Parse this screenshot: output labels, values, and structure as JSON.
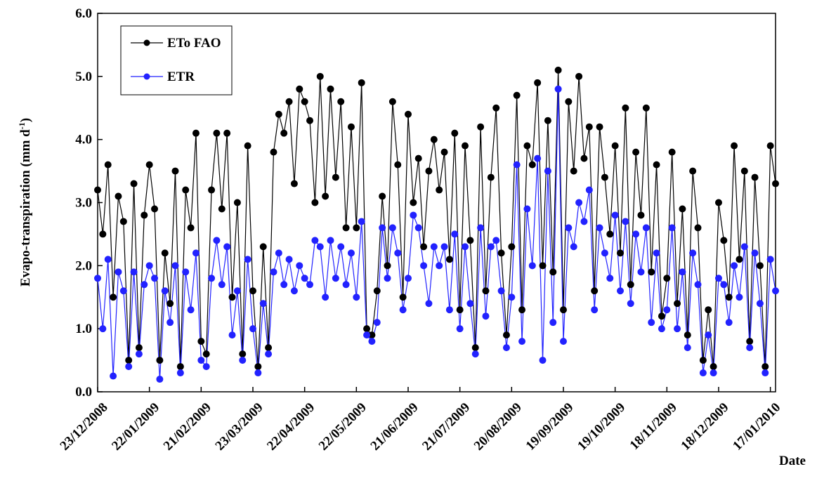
{
  "chart_data": {
    "type": "line",
    "y_label": "Evapo-transpiration (mm d",
    "y_label_sup": "-1",
    "y_label_close": ")",
    "x_label": "Date",
    "legend": "top-left",
    "x": [
      "23/12/2008",
      "26/12/2008",
      "29/12/2008",
      "01/01/2009",
      "04/01/2009",
      "07/01/2009",
      "10/01/2009",
      "13/01/2009",
      "16/01/2009",
      "19/01/2009",
      "22/01/2009",
      "25/01/2009",
      "28/01/2009",
      "31/01/2009",
      "03/02/2009",
      "06/02/2009",
      "09/02/2009",
      "12/02/2009",
      "15/02/2009",
      "18/02/2009",
      "21/02/2009",
      "24/02/2009",
      "27/02/2009",
      "02/03/2009",
      "05/03/2009",
      "08/03/2009",
      "11/03/2009",
      "14/03/2009",
      "17/03/2009",
      "20/03/2009",
      "23/03/2009",
      "26/03/2009",
      "29/03/2009",
      "01/04/2009",
      "04/04/2009",
      "07/04/2009",
      "10/04/2009",
      "13/04/2009",
      "16/04/2009",
      "19/04/2009",
      "22/04/2009",
      "25/04/2009",
      "28/04/2009",
      "01/05/2009",
      "04/05/2009",
      "07/05/2009",
      "10/05/2009",
      "13/05/2009",
      "16/05/2009",
      "19/05/2009",
      "22/05/2009",
      "25/05/2009",
      "28/05/2009",
      "31/05/2009",
      "03/06/2009",
      "06/06/2009",
      "09/06/2009",
      "12/06/2009",
      "15/06/2009",
      "18/06/2009",
      "21/06/2009",
      "24/06/2009",
      "27/06/2009",
      "30/06/2009",
      "03/07/2009",
      "06/07/2009",
      "09/07/2009",
      "12/07/2009",
      "15/07/2009",
      "18/07/2009",
      "21/07/2009",
      "24/07/2009",
      "27/07/2009",
      "30/07/2009",
      "02/08/2009",
      "05/08/2009",
      "08/08/2009",
      "11/08/2009",
      "14/08/2009",
      "17/08/2009",
      "20/08/2009",
      "23/08/2009",
      "26/08/2009",
      "29/08/2009",
      "01/09/2009",
      "04/09/2009",
      "07/09/2009",
      "10/09/2009",
      "13/09/2009",
      "16/09/2009",
      "19/09/2009",
      "22/09/2009",
      "25/09/2009",
      "28/09/2009",
      "01/10/2009",
      "04/10/2009",
      "07/10/2009",
      "10/10/2009",
      "13/10/2009",
      "16/10/2009",
      "19/10/2009",
      "22/10/2009",
      "25/10/2009",
      "28/10/2009",
      "31/10/2009",
      "03/11/2009",
      "06/11/2009",
      "09/11/2009",
      "12/11/2009",
      "15/11/2009",
      "18/11/2009",
      "21/11/2009",
      "24/11/2009",
      "27/11/2009",
      "30/11/2009",
      "03/12/2009",
      "06/12/2009",
      "09/12/2009",
      "12/12/2009",
      "15/12/2009",
      "18/12/2009",
      "21/12/2009",
      "24/12/2009",
      "27/12/2009",
      "30/12/2009",
      "02/01/2010",
      "05/01/2010",
      "08/01/2010",
      "11/01/2010",
      "14/01/2010",
      "17/01/2010",
      "20/01/2010"
    ],
    "series": [
      {
        "name": "ETo FAO",
        "color": "#000000",
        "values": [
          3.2,
          2.5,
          3.6,
          1.5,
          3.1,
          2.7,
          0.5,
          3.3,
          0.7,
          2.8,
          3.6,
          2.9,
          0.5,
          2.2,
          1.4,
          3.5,
          0.4,
          3.2,
          2.6,
          4.1,
          0.8,
          0.6,
          3.2,
          4.1,
          2.9,
          4.1,
          1.5,
          3.0,
          0.6,
          3.9,
          1.6,
          0.4,
          2.3,
          0.7,
          3.8,
          4.4,
          4.1,
          4.6,
          3.3,
          4.8,
          4.6,
          4.3,
          3.0,
          5.0,
          3.1,
          4.8,
          3.4,
          4.6,
          2.6,
          4.2,
          2.6,
          4.9,
          1.0,
          0.9,
          1.6,
          3.1,
          2.0,
          4.6,
          3.6,
          1.5,
          4.4,
          3.0,
          3.7,
          2.3,
          3.5,
          4.0,
          3.2,
          3.8,
          2.1,
          4.1,
          1.3,
          3.9,
          2.4,
          0.7,
          4.2,
          1.6,
          3.4,
          4.5,
          2.2,
          0.9,
          2.3,
          4.7,
          1.3,
          3.9,
          3.6,
          4.9,
          2.0,
          4.3,
          1.9,
          5.1,
          1.3,
          4.6,
          3.5,
          5.0,
          3.7,
          4.2,
          1.6,
          4.2,
          3.4,
          2.5,
          3.9,
          2.2,
          4.5,
          1.7,
          3.8,
          2.8,
          4.5,
          1.9,
          3.6,
          1.2,
          1.8,
          3.8,
          1.4,
          2.9,
          0.9,
          3.5,
          2.6,
          0.5,
          1.3,
          0.4,
          3.0,
          2.4,
          1.5,
          3.9,
          2.1,
          3.5,
          0.8,
          3.4,
          2.0,
          0.4,
          3.9,
          3.3
        ]
      },
      {
        "name": "ETR",
        "color": "#2222ff",
        "values": [
          1.8,
          1.0,
          2.1,
          0.25,
          1.9,
          1.6,
          0.4,
          1.9,
          0.6,
          1.7,
          2.0,
          1.8,
          0.2,
          1.6,
          1.1,
          2.0,
          0.3,
          1.9,
          1.3,
          2.2,
          0.5,
          0.4,
          1.8,
          2.4,
          1.7,
          2.3,
          0.9,
          1.6,
          0.5,
          2.1,
          1.0,
          0.3,
          1.4,
          0.6,
          1.9,
          2.2,
          1.7,
          2.1,
          1.6,
          2.0,
          1.8,
          1.7,
          2.4,
          2.3,
          1.5,
          2.4,
          1.8,
          2.3,
          1.7,
          2.2,
          1.5,
          2.7,
          0.9,
          0.8,
          1.1,
          2.6,
          1.8,
          2.6,
          2.2,
          1.3,
          1.8,
          2.8,
          2.6,
          2.0,
          1.4,
          2.3,
          2.0,
          2.3,
          1.3,
          2.5,
          1.0,
          2.3,
          1.4,
          0.6,
          2.6,
          1.2,
          2.3,
          2.4,
          1.6,
          0.7,
          1.5,
          3.6,
          0.8,
          2.9,
          2.0,
          3.7,
          0.5,
          3.5,
          1.1,
          4.8,
          0.8,
          2.6,
          2.3,
          3.0,
          2.7,
          3.2,
          1.3,
          2.6,
          2.2,
          1.8,
          2.8,
          1.6,
          2.7,
          1.4,
          2.5,
          1.9,
          2.6,
          1.1,
          2.2,
          1.0,
          1.3,
          2.6,
          1.0,
          1.9,
          0.7,
          2.2,
          1.7,
          0.3,
          0.9,
          0.3,
          1.8,
          1.7,
          1.1,
          2.0,
          1.5,
          2.3,
          0.7,
          2.2,
          1.4,
          0.3,
          2.1,
          1.6
        ]
      }
    ],
    "xlim": [
      "23/12/2008",
      "20/01/2010"
    ],
    "xticks": [
      "23/12/2008",
      "22/01/2009",
      "21/02/2009",
      "23/03/2009",
      "22/04/2009",
      "22/05/2009",
      "21/06/2009",
      "21/07/2009",
      "20/08/2009",
      "19/09/2009",
      "19/10/2009",
      "18/11/2009",
      "18/12/2009",
      "17/01/2010"
    ],
    "ylim": [
      0,
      6
    ],
    "yticks": [
      {
        "value": 0,
        "label": "0.0"
      },
      {
        "value": 1,
        "label": "1.0"
      },
      {
        "value": 2,
        "label": "2.0"
      },
      {
        "value": 3,
        "label": "3.0"
      },
      {
        "value": 4,
        "label": "4.0"
      },
      {
        "value": 5,
        "label": "5.0"
      },
      {
        "value": 6,
        "label": "6.0"
      }
    ]
  }
}
